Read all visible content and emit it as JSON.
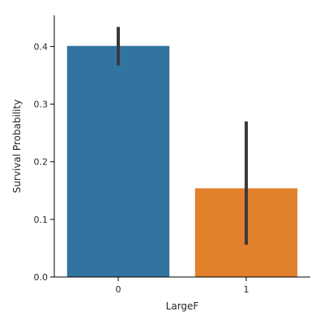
{
  "chart_data": {
    "type": "bar",
    "title": "",
    "xlabel": "LargeF",
    "ylabel": "Survival Probability",
    "categories": [
      "0",
      "1"
    ],
    "values": [
      0.401,
      0.154
    ],
    "error_low": [
      0.367,
      0.056
    ],
    "error_high": [
      0.434,
      0.27
    ],
    "ylim": [
      0,
      0.454
    ],
    "yticks": [
      0.0,
      0.1,
      0.2,
      0.3,
      0.4
    ],
    "ytick_labels": [
      "0.0",
      "0.1",
      "0.2",
      "0.3",
      "0.4"
    ],
    "grid": false,
    "colors": [
      "#3274a1",
      "#e1812c"
    ],
    "error_color": "#3a3a3a"
  }
}
